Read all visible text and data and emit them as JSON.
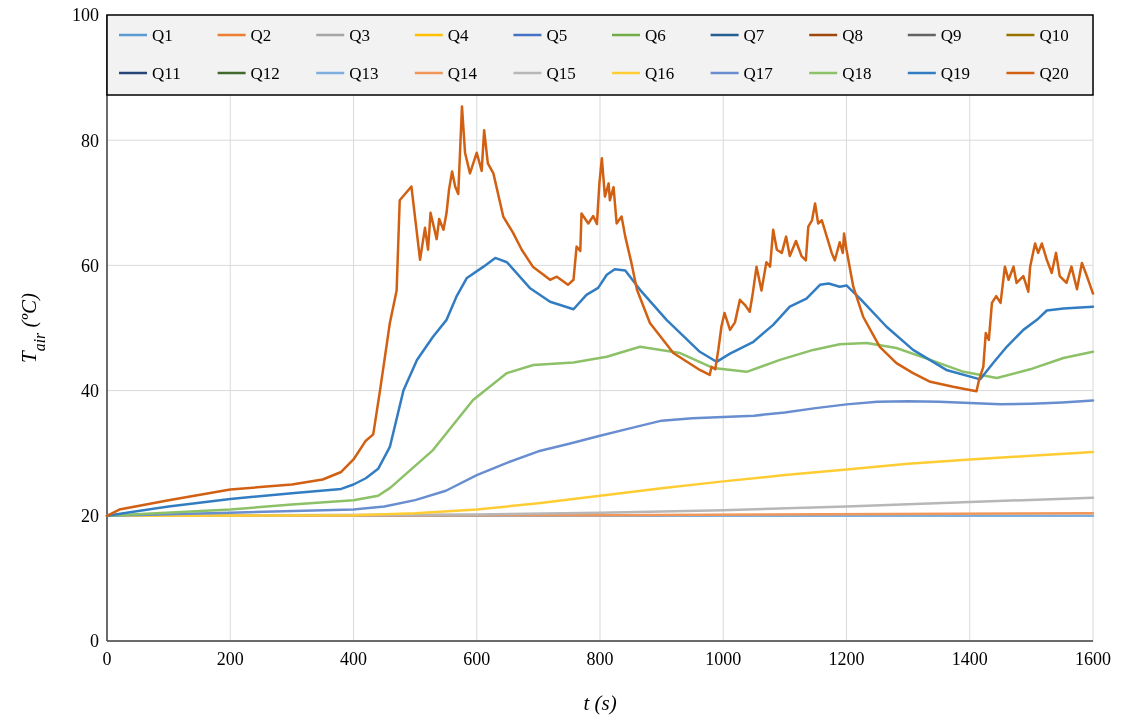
{
  "chart_data": {
    "type": "line",
    "xlabel": "t (s)",
    "ylabel": "T$_{air}$ (ºC)",
    "xlim": [
      0,
      1600
    ],
    "ylim": [
      0,
      100
    ],
    "xticks": [
      0,
      200,
      400,
      600,
      800,
      1000,
      1200,
      1400,
      1600
    ],
    "yticks": [
      0,
      20,
      40,
      60,
      80,
      100
    ],
    "grid": true,
    "legend": "top",
    "marker": "none",
    "line_style": "solid",
    "series": [
      {
        "name": "Q1",
        "color": "#5b9bd5"
      },
      {
        "name": "Q2",
        "color": "#ed7d31"
      },
      {
        "name": "Q3",
        "color": "#a5a5a5"
      },
      {
        "name": "Q4",
        "color": "#ffc000"
      },
      {
        "name": "Q5",
        "color": "#4472c4"
      },
      {
        "name": "Q6",
        "color": "#70ad47"
      },
      {
        "name": "Q7",
        "color": "#255e91"
      },
      {
        "name": "Q8",
        "color": "#9e480e"
      },
      {
        "name": "Q9",
        "color": "#636363"
      },
      {
        "name": "Q10",
        "color": "#997300"
      },
      {
        "name": "Q11",
        "color": "#264478"
      },
      {
        "name": "Q12",
        "color": "#43682b"
      },
      {
        "name": "Q13",
        "color": "#7cafdd",
        "x": [
          0,
          1600
        ],
        "values": [
          20,
          20
        ]
      },
      {
        "name": "Q14",
        "color": "#f1975a",
        "x": [
          0,
          800,
          1600
        ],
        "values": [
          20,
          20.1,
          20.4
        ]
      },
      {
        "name": "Q15",
        "color": "#b7b7b7",
        "x": [
          0,
          600,
          800,
          1000,
          1200,
          1400,
          1600
        ],
        "values": [
          20,
          20.2,
          20.5,
          20.9,
          21.5,
          22.2,
          22.9
        ]
      },
      {
        "name": "Q16",
        "color": "#ffcd33",
        "x": [
          0,
          400,
          500,
          600,
          700,
          800,
          900,
          1000,
          1100,
          1200,
          1300,
          1400,
          1500,
          1600
        ],
        "values": [
          20,
          20.1,
          20.4,
          21,
          22,
          23.2,
          24.4,
          25.5,
          26.5,
          27.4,
          28.3,
          29,
          29.6,
          30.2
        ]
      },
      {
        "name": "Q17",
        "color": "#698ed0",
        "x": [
          0,
          200,
          400,
          450,
          500,
          550,
          600,
          650,
          700,
          750,
          800,
          850,
          900,
          950,
          1000,
          1050,
          1100,
          1150,
          1200,
          1250,
          1300,
          1350,
          1400,
          1450,
          1500,
          1550,
          1600
        ],
        "values": [
          20,
          20.5,
          21,
          21.5,
          22.5,
          24,
          26.5,
          28.5,
          30.3,
          31.5,
          32.8,
          34,
          35.2,
          35.6,
          35.8,
          36,
          36.5,
          37.2,
          37.8,
          38.2,
          38.3,
          38.2,
          38,
          37.8,
          37.9,
          38.1,
          38.4
        ]
      },
      {
        "name": "Q18",
        "color": "#8cc168",
        "x": [
          0,
          200,
          300,
          400,
          440,
          460,
          529,
          594,
          649,
          692,
          757,
          811,
          865,
          930,
          984,
          1038,
          1092,
          1146,
          1189,
          1233,
          1281,
          1336,
          1390,
          1444,
          1498,
          1552,
          1600
        ],
        "values": [
          20,
          21,
          21.8,
          22.5,
          23.2,
          24.5,
          30.5,
          38.5,
          42.8,
          44.1,
          44.5,
          45.4,
          47,
          46,
          43.6,
          43,
          44.9,
          46.5,
          47.4,
          47.6,
          46.8,
          44.9,
          43,
          42,
          43.4,
          45.2,
          46.2
        ]
      },
      {
        "name": "Q19",
        "color": "#327dc2",
        "x": [
          0,
          100,
          200,
          300,
          380,
          400,
          420,
          440,
          459,
          481,
          503,
          529,
          551,
          567,
          584,
          611,
          630,
          649,
          686,
          719,
          757,
          778,
          797,
          811,
          824,
          841,
          865,
          908,
          962,
          989,
          1011,
          1049,
          1081,
          1108,
          1135,
          1157,
          1171,
          1189,
          1200,
          1222,
          1265,
          1308,
          1362,
          1417,
          1438,
          1460,
          1487,
          1509,
          1525,
          1552,
          1600
        ],
        "values": [
          20,
          21.5,
          22.7,
          23.6,
          24.3,
          25,
          26,
          27.5,
          31,
          40,
          44.9,
          48.6,
          51.3,
          55,
          58,
          59.8,
          61.2,
          60.5,
          56.4,
          54.2,
          53,
          55.3,
          56.4,
          58.5,
          59.4,
          59.2,
          56.1,
          51.3,
          46.2,
          44.6,
          45.9,
          47.8,
          50.5,
          53.4,
          54.7,
          56.9,
          57.1,
          56.6,
          56.8,
          54.7,
          50.2,
          46.5,
          43.3,
          41.8,
          44.4,
          47,
          49.7,
          51.3,
          52.8,
          53.1,
          53.4
        ]
      },
      {
        "name": "Q20",
        "color": "#d26012",
        "x": [
          0,
          20,
          100,
          200,
          300,
          350,
          380,
          400,
          420,
          432,
          443,
          459,
          470,
          475,
          494,
          508,
          516,
          521,
          525,
          535,
          539,
          546,
          551,
          555,
          560,
          565,
          570,
          576,
          581,
          589,
          600,
          608,
          612,
          618,
          627,
          643,
          659,
          673,
          691,
          719,
          730,
          748,
          757,
          762,
          768,
          770,
          781,
          789,
          795,
          799,
          803,
          808,
          814,
          816,
          822,
          827,
          835,
          841,
          851,
          860,
          881,
          919,
          962,
          978,
          981,
          987,
          992,
          997,
          1002,
          1011,
          1019,
          1027,
          1035,
          1043,
          1048,
          1054,
          1062,
          1070,
          1076,
          1081,
          1087,
          1095,
          1102,
          1108,
          1118,
          1127,
          1134,
          1138,
          1144,
          1149,
          1154,
          1160,
          1168,
          1176,
          1181,
          1189,
          1194,
          1196,
          1200,
          1211,
          1227,
          1254,
          1281,
          1308,
          1336,
          1373,
          1400,
          1411,
          1415,
          1422,
          1426,
          1431,
          1436,
          1443,
          1450,
          1457,
          1463,
          1471,
          1476,
          1487,
          1495,
          1498,
          1506,
          1511,
          1517,
          1525,
          1533,
          1540,
          1546,
          1557,
          1565,
          1574,
          1582,
          1590,
          1600
        ],
        "values": [
          20,
          21,
          22.5,
          24.2,
          25,
          25.8,
          27,
          29,
          32,
          33,
          40,
          50.8,
          56,
          70.4,
          72.6,
          60.9,
          66,
          62.5,
          68.4,
          64.2,
          67.4,
          65.7,
          68.4,
          72.1,
          75,
          72.6,
          71.4,
          85.4,
          78,
          74.7,
          78,
          75.1,
          81.6,
          76.3,
          74.7,
          67.8,
          65.2,
          62.5,
          59.8,
          57.7,
          58.2,
          56.9,
          57.7,
          63,
          62.3,
          68.3,
          66.7,
          67.9,
          66.6,
          73.1,
          77.1,
          71,
          73.1,
          70.4,
          72.5,
          66.7,
          67.8,
          64.6,
          60.4,
          56.1,
          50.8,
          46,
          43.3,
          42.5,
          43.8,
          43.4,
          46.5,
          50.2,
          52.4,
          49.7,
          50.9,
          54.5,
          53.7,
          52.6,
          55.6,
          59.8,
          56,
          60.5,
          59.8,
          65.7,
          62.5,
          62,
          64.6,
          61.5,
          63.9,
          61.5,
          60.8,
          66.2,
          67.2,
          69.9,
          66.7,
          67.2,
          64.6,
          62,
          60.8,
          63.7,
          62,
          65.1,
          62.5,
          56.6,
          51.8,
          47,
          44.4,
          42.8,
          41.4,
          40.6,
          40.1,
          39.9,
          41.7,
          43.8,
          49.2,
          48.1,
          54,
          55.1,
          54,
          59.8,
          57.7,
          59.8,
          57.2,
          58.3,
          55.8,
          59.8,
          63.5,
          62,
          63.5,
          60.9,
          58.8,
          62,
          58.3,
          57.2,
          59.8,
          56.2,
          60.4,
          58.3,
          55.5
        ]
      }
    ]
  }
}
